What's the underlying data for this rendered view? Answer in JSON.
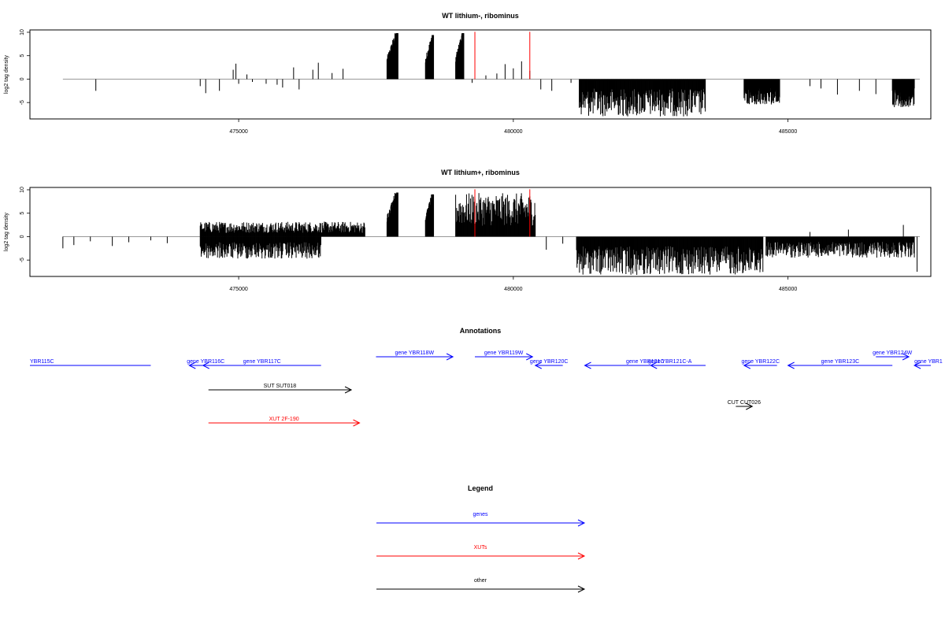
{
  "chart_data": [
    {
      "type": "bar",
      "title": "WT lithium-, ribominus",
      "xlabel": "",
      "ylabel": "log2 tag density",
      "xlim": [
        471200,
        487600
      ],
      "ylim": [
        -8.5,
        10.5
      ],
      "xticks": [
        475000,
        480000,
        485000
      ],
      "xtick_labels": [
        "475000",
        "480000",
        "485000"
      ],
      "yticks": [
        10,
        5,
        0,
        -5
      ],
      "ytick_labels": [
        "10",
        "5",
        "0",
        "-5"
      ],
      "grid": false,
      "baseline": {
        "from": 471800,
        "to": 487400,
        "color": "#999999"
      },
      "marker_lines": {
        "x": [
          479300,
          480300
        ],
        "color": "#ff0000"
      },
      "clusters": [
        {
          "x0": 477700,
          "x1": 477900,
          "peak": 9.8,
          "sign": 1
        },
        {
          "x0": 478400,
          "x1": 478550,
          "peak": 9.4,
          "sign": 1
        },
        {
          "x0": 478950,
          "x1": 479100,
          "peak": 9.8,
          "sign": 1
        },
        {
          "x0": 481200,
          "x1": 483500,
          "peak": -8.0,
          "sign": -1
        },
        {
          "x0": 484200,
          "x1": 484850,
          "peak": -5.5,
          "sign": -1
        },
        {
          "x0": 486900,
          "x1": 487300,
          "peak": -6.0,
          "sign": -1
        }
      ],
      "bars": [
        [
          472400,
          -2.5
        ],
        [
          474300,
          -1.5
        ],
        [
          474400,
          -3.0
        ],
        [
          474650,
          -2.5
        ],
        [
          474900,
          2.0
        ],
        [
          474950,
          3.3
        ],
        [
          475000,
          -1.0
        ],
        [
          475150,
          1.0
        ],
        [
          475250,
          -0.6
        ],
        [
          475500,
          -1.0
        ],
        [
          475700,
          -1.2
        ],
        [
          475800,
          -1.8
        ],
        [
          476000,
          2.5
        ],
        [
          476100,
          -2.2
        ],
        [
          476350,
          2.0
        ],
        [
          476450,
          3.5
        ],
        [
          476700,
          1.3
        ],
        [
          476900,
          2.2
        ],
        [
          479250,
          -0.8
        ],
        [
          479500,
          0.8
        ],
        [
          479700,
          1.2
        ],
        [
          479850,
          3.2
        ],
        [
          480000,
          2.3
        ],
        [
          480150,
          3.8
        ],
        [
          480300,
          1.8
        ],
        [
          480500,
          -2.2
        ],
        [
          480700,
          -2.5
        ],
        [
          481050,
          -0.8
        ],
        [
          485400,
          -1.5
        ],
        [
          485600,
          -2.0
        ],
        [
          485900,
          -3.3
        ],
        [
          486300,
          -2.5
        ],
        [
          486600,
          -3.2
        ]
      ],
      "annotation": {
        "x_mark": 480400,
        "value": -2.6
      }
    },
    {
      "type": "bar",
      "title": "WT lithium+, ribominus",
      "xlabel": "",
      "ylabel": "log2 tag density",
      "xlim": [
        471200,
        487600
      ],
      "ylim": [
        -8.5,
        10.5
      ],
      "xticks": [
        475000,
        480000,
        485000
      ],
      "xtick_labels": [
        "475000",
        "480000",
        "485000"
      ],
      "yticks": [
        10,
        5,
        0,
        -5
      ],
      "ytick_labels": [
        "10",
        "5",
        "0",
        "-5"
      ],
      "grid": false,
      "baseline": {
        "from": 471800,
        "to": 487400,
        "color": "#999999"
      },
      "marker_lines": {
        "x": [
          479300,
          480300
        ],
        "color": "#ff0000"
      },
      "clusters": [
        {
          "x0": 474300,
          "x1": 477300,
          "peak": 3.2,
          "sign": 1
        },
        {
          "x0": 474300,
          "x1": 476500,
          "peak": -4.8,
          "sign": -1
        },
        {
          "x0": 477700,
          "x1": 477900,
          "peak": 9.4,
          "sign": 1
        },
        {
          "x0": 478400,
          "x1": 478550,
          "peak": 9.0,
          "sign": 1
        },
        {
          "x0": 478950,
          "x1": 480400,
          "peak": 9.3,
          "sign": 1
        },
        {
          "x0": 481150,
          "x1": 484550,
          "peak": -8.2,
          "sign": -1
        },
        {
          "x0": 484600,
          "x1": 487300,
          "peak": -4.5,
          "sign": -1
        }
      ],
      "bars": [
        [
          471800,
          -2.5
        ],
        [
          472000,
          -1.8
        ],
        [
          472300,
          -1.0
        ],
        [
          472700,
          -2.0
        ],
        [
          473000,
          -1.2
        ],
        [
          473400,
          -0.8
        ],
        [
          473700,
          -1.4
        ],
        [
          480600,
          -2.8
        ],
        [
          480900,
          -1.5
        ],
        [
          485400,
          1.0
        ],
        [
          486100,
          1.5
        ],
        [
          487100,
          2.5
        ],
        [
          487350,
          -7.5
        ]
      ],
      "annotation": {
        "x_mark": 480400,
        "value": -2.6
      }
    }
  ],
  "annotations_panel": {
    "title": "Annotations",
    "xlim": [
      471200,
      487600
    ],
    "items": [
      {
        "label": "YBR115C",
        "start": 471200,
        "end": 473400,
        "dir": "none",
        "row": 0,
        "color": "#0000ff",
        "label_at": "start"
      },
      {
        "label": "gene YBR116C",
        "start": 474100,
        "end": 474700,
        "dir": "left",
        "row": 0,
        "color": "#0000ff",
        "label_at": "center"
      },
      {
        "label": "gene YBR117C",
        "start": 474350,
        "end": 476500,
        "dir": "left",
        "row": 0,
        "color": "#0000ff",
        "label_at": "center"
      },
      {
        "label": "gene YBR118W",
        "start": 477500,
        "end": 478900,
        "dir": "right",
        "row": -1,
        "color": "#0000ff",
        "label_at": "center"
      },
      {
        "label": "gene YBR119W",
        "start": 479300,
        "end": 480350,
        "dir": "right",
        "row": -1,
        "color": "#0000ff",
        "label_at": "center"
      },
      {
        "label": "gene YBR120C",
        "start": 480400,
        "end": 480900,
        "dir": "left",
        "row": 0,
        "color": "#0000ff",
        "label_at": "center"
      },
      {
        "label": "gene YBR121C",
        "start": 481300,
        "end": 483500,
        "dir": "left",
        "row": 0,
        "color": "#0000ff",
        "label_at": "center"
      },
      {
        "label": "gene YBR121C-A",
        "start": 482500,
        "end": 483200,
        "dir": "left",
        "row": 0,
        "color": "#0000ff",
        "label_at": "center"
      },
      {
        "label": "gene YBR122C",
        "start": 484200,
        "end": 484800,
        "dir": "left",
        "row": 0,
        "color": "#0000ff",
        "label_at": "center"
      },
      {
        "label": "gene YBR123C",
        "start": 485000,
        "end": 486900,
        "dir": "left",
        "row": 0,
        "color": "#0000ff",
        "label_at": "center"
      },
      {
        "label": "gene YBR124W",
        "start": 486600,
        "end": 487200,
        "dir": "right",
        "row": -1,
        "color": "#0000ff",
        "label_at": "center"
      },
      {
        "label": "gene YBR1",
        "start": 487300,
        "end": 487600,
        "dir": "left",
        "row": 0,
        "color": "#0000ff",
        "label_at": "start"
      },
      {
        "label": "SUT SUT018",
        "start": 474450,
        "end": 477050,
        "dir": "right",
        "row": 2,
        "color": "#000000",
        "label_at": "center"
      },
      {
        "label": "CUT CUT026",
        "start": 484050,
        "end": 484350,
        "dir": "right",
        "row": 3,
        "color": "#000000",
        "label_at": "center"
      },
      {
        "label": "XUT 2F-190",
        "start": 474450,
        "end": 477200,
        "dir": "right",
        "row": 4,
        "color": "#ff0000",
        "label_at": "center"
      }
    ]
  },
  "legend": {
    "title": "Legend",
    "items": [
      {
        "label": "genes",
        "color": "#0000ff"
      },
      {
        "label": "XUTs",
        "color": "#ff0000"
      },
      {
        "label": "other",
        "color": "#000000"
      }
    ]
  }
}
